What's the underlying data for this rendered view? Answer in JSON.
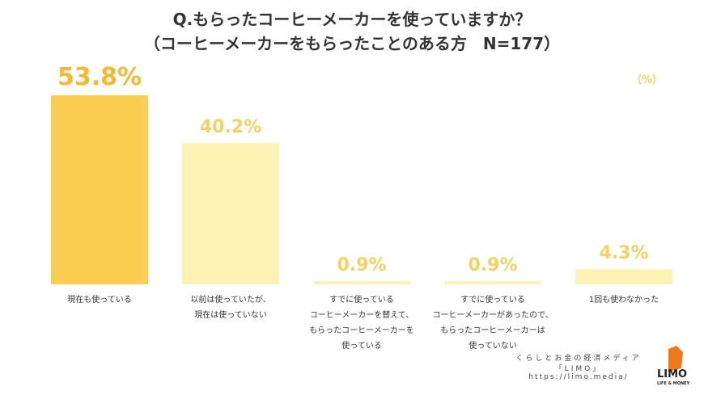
{
  "chart_data": {
    "type": "bar",
    "title": "Q.もらったコーヒーメーカーを使っていますか？",
    "subtitle": "（コーヒーメーカーをもらったことのある方　N=177）",
    "unit_label": "（%）",
    "categories": [
      "現在も使っている",
      "以前は使っていたが、\n現在は使っていない",
      "すでに使っている\nコーヒーメーカーを替えて、\nもらったコーヒーメーカーを\n使っている",
      "すでに使っている\nコーヒーメーカーがあったので、\nもらったコーヒーメーカーは\n使っていない",
      "1回も使わなかった"
    ],
    "values": [
      53.8,
      40.2,
      0.9,
      0.9,
      4.3
    ],
    "value_labels": [
      "53.8%",
      "40.2%",
      "0.9%",
      "0.9%",
      "4.3%"
    ],
    "colors": [
      "#fbcd50",
      "#fbf2b3",
      "#fbf2b3",
      "#fbf2b3",
      "#fbf2b3"
    ],
    "value_label_colors": [
      "#f6b92d",
      "#f3d35d",
      "#f3d35d",
      "#f3d35d",
      "#f3d35d"
    ],
    "ylim": [
      0,
      60
    ]
  },
  "footer": {
    "tagline": "くらしとお金の経済メディア",
    "brand": "「LIMO」",
    "url": "https://limo.media/",
    "logo": "LIMO",
    "logo_sub": "LIFE & MONEY"
  }
}
